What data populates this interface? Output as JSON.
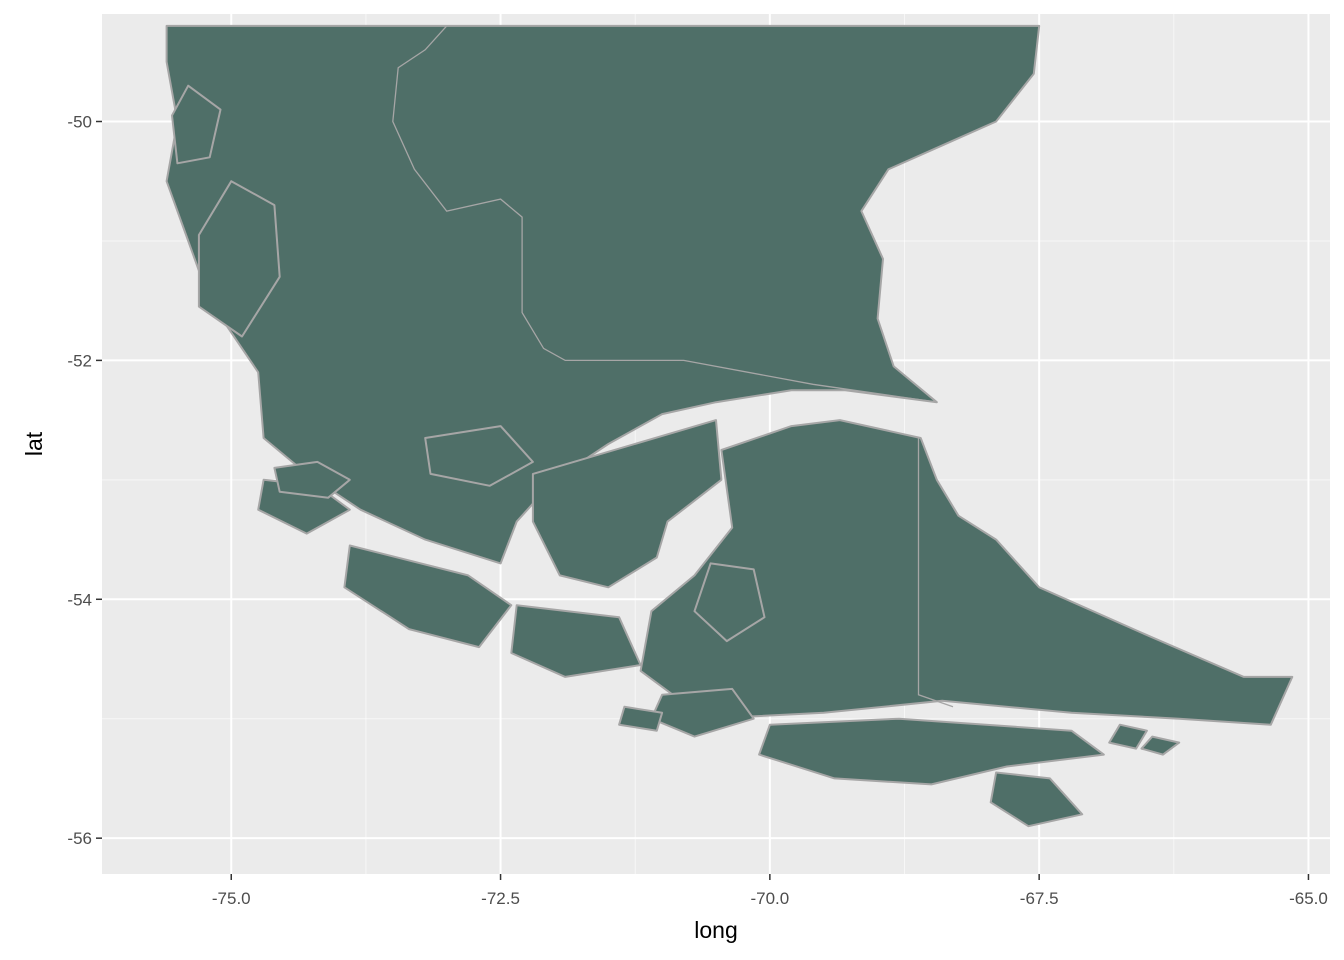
{
  "chart_data": {
    "type": "map",
    "xlabel": "long",
    "ylabel": "lat",
    "xlim": [
      -76.2,
      -64.8
    ],
    "ylim": [
      -56.3,
      -49.1
    ],
    "x_ticks": [
      -75.0,
      -72.5,
      -70.0,
      -67.5,
      -65.0
    ],
    "x_tick_labels": [
      "-75.0",
      "-72.5",
      "-70.0",
      "-67.5",
      "-65.0"
    ],
    "y_ticks": [
      -50,
      -52,
      -54,
      -56
    ],
    "y_tick_labels": [
      "-50",
      "-52",
      "-54",
      "-56"
    ],
    "grid": true,
    "panel_background": "#ebebeb",
    "grid_color": "#ffffff",
    "land_fill": "#4f6f68",
    "land_stroke": "#a6a6a6",
    "water_color": "#ebebeb",
    "regions": [
      {
        "id": "mainland",
        "coords": [
          [
            -75.6,
            -49.2
          ],
          [
            -67.5,
            -49.2
          ],
          [
            -67.55,
            -49.6
          ],
          [
            -67.9,
            -50.0
          ],
          [
            -68.4,
            -50.2
          ],
          [
            -68.9,
            -50.4
          ],
          [
            -69.15,
            -50.75
          ],
          [
            -68.95,
            -51.15
          ],
          [
            -69.0,
            -51.65
          ],
          [
            -68.85,
            -52.05
          ],
          [
            -68.45,
            -52.35
          ],
          [
            -69.3,
            -52.25
          ],
          [
            -69.8,
            -52.25
          ],
          [
            -70.5,
            -52.35
          ],
          [
            -71.0,
            -52.45
          ],
          [
            -71.5,
            -52.7
          ],
          [
            -72.0,
            -53.0
          ],
          [
            -72.35,
            -53.35
          ],
          [
            -72.5,
            -53.7
          ],
          [
            -73.2,
            -53.5
          ],
          [
            -73.8,
            -53.25
          ],
          [
            -74.3,
            -52.95
          ],
          [
            -74.7,
            -52.65
          ],
          [
            -74.75,
            -52.1
          ],
          [
            -75.2,
            -51.5
          ],
          [
            -75.4,
            -51.0
          ],
          [
            -75.6,
            -50.5
          ],
          [
            -75.5,
            -50.0
          ],
          [
            -75.6,
            -49.5
          ]
        ]
      },
      {
        "id": "brunswick-peninsula",
        "coords": [
          [
            -72.2,
            -52.95
          ],
          [
            -70.5,
            -52.5
          ],
          [
            -70.45,
            -53.0
          ],
          [
            -70.95,
            -53.35
          ],
          [
            -71.05,
            -53.65
          ],
          [
            -71.5,
            -53.9
          ],
          [
            -71.95,
            -53.8
          ],
          [
            -72.2,
            -53.35
          ]
        ]
      },
      {
        "id": "tierra-del-fuego",
        "coords": [
          [
            -70.45,
            -52.75
          ],
          [
            -69.8,
            -52.55
          ],
          [
            -69.35,
            -52.5
          ],
          [
            -68.6,
            -52.65
          ],
          [
            -68.45,
            -53.0
          ],
          [
            -68.25,
            -53.3
          ],
          [
            -67.9,
            -53.5
          ],
          [
            -67.5,
            -53.9
          ],
          [
            -66.5,
            -54.3
          ],
          [
            -65.6,
            -54.65
          ],
          [
            -65.15,
            -54.65
          ],
          [
            -65.35,
            -55.05
          ],
          [
            -66.2,
            -55.0
          ],
          [
            -67.2,
            -54.95
          ],
          [
            -68.4,
            -54.85
          ],
          [
            -69.5,
            -54.95
          ],
          [
            -70.6,
            -55.0
          ],
          [
            -71.2,
            -54.6
          ],
          [
            -71.1,
            -54.1
          ],
          [
            -70.7,
            -53.8
          ],
          [
            -70.35,
            -53.4
          ]
        ]
      },
      {
        "id": "navarino-hoste",
        "coords": [
          [
            -70.0,
            -55.05
          ],
          [
            -68.8,
            -55.0
          ],
          [
            -67.2,
            -55.1
          ],
          [
            -66.9,
            -55.3
          ],
          [
            -67.8,
            -55.4
          ],
          [
            -68.5,
            -55.55
          ],
          [
            -69.4,
            -55.5
          ],
          [
            -70.1,
            -55.3
          ]
        ]
      },
      {
        "id": "isla-santa-ines",
        "coords": [
          [
            -73.9,
            -53.55
          ],
          [
            -72.8,
            -53.8
          ],
          [
            -72.4,
            -54.05
          ],
          [
            -72.7,
            -54.4
          ],
          [
            -73.35,
            -54.25
          ],
          [
            -73.95,
            -53.9
          ]
        ]
      },
      {
        "id": "clarence-island",
        "coords": [
          [
            -72.35,
            -54.05
          ],
          [
            -71.4,
            -54.15
          ],
          [
            -71.2,
            -54.55
          ],
          [
            -71.9,
            -54.65
          ],
          [
            -72.4,
            -54.45
          ]
        ]
      },
      {
        "id": "wellington-island",
        "coords": [
          [
            -75.0,
            -50.5
          ],
          [
            -74.6,
            -50.7
          ],
          [
            -74.55,
            -51.3
          ],
          [
            -74.9,
            -51.8
          ],
          [
            -75.3,
            -51.55
          ],
          [
            -75.3,
            -50.95
          ]
        ]
      },
      {
        "id": "madre-de-dios",
        "coords": [
          [
            -75.4,
            -49.7
          ],
          [
            -75.1,
            -49.9
          ],
          [
            -75.2,
            -50.3
          ],
          [
            -75.5,
            -50.35
          ],
          [
            -75.55,
            -49.95
          ]
        ]
      },
      {
        "id": "rennell-island",
        "coords": [
          [
            -74.7,
            -53.0
          ],
          [
            -74.2,
            -53.05
          ],
          [
            -73.9,
            -53.25
          ],
          [
            -74.3,
            -53.45
          ],
          [
            -74.75,
            -53.25
          ]
        ]
      },
      {
        "id": "riesco-island",
        "coords": [
          [
            -73.2,
            -52.65
          ],
          [
            -72.5,
            -52.55
          ],
          [
            -72.2,
            -52.85
          ],
          [
            -72.6,
            -53.05
          ],
          [
            -73.15,
            -52.95
          ]
        ]
      },
      {
        "id": "isla-dawson",
        "coords": [
          [
            -70.55,
            -53.7
          ],
          [
            -70.15,
            -53.75
          ],
          [
            -70.05,
            -54.15
          ],
          [
            -70.4,
            -54.35
          ],
          [
            -70.7,
            -54.1
          ]
        ]
      },
      {
        "id": "isla-londonderry",
        "coords": [
          [
            -71.0,
            -54.8
          ],
          [
            -70.35,
            -54.75
          ],
          [
            -70.15,
            -55.0
          ],
          [
            -70.7,
            -55.15
          ],
          [
            -71.1,
            -55.0
          ]
        ]
      },
      {
        "id": "isla-desolacion",
        "coords": [
          [
            -74.6,
            -52.9
          ],
          [
            -74.2,
            -52.85
          ],
          [
            -73.9,
            -53.0
          ],
          [
            -74.1,
            -53.15
          ],
          [
            -74.55,
            -53.1
          ]
        ]
      },
      {
        "id": "isla-wollaston",
        "coords": [
          [
            -67.9,
            -55.45
          ],
          [
            -67.4,
            -55.5
          ],
          [
            -67.1,
            -55.8
          ],
          [
            -67.6,
            -55.9
          ],
          [
            -67.95,
            -55.7
          ]
        ]
      },
      {
        "id": "isla-picton",
        "coords": [
          [
            -66.75,
            -55.05
          ],
          [
            -66.5,
            -55.1
          ],
          [
            -66.6,
            -55.25
          ],
          [
            -66.85,
            -55.2
          ]
        ]
      },
      {
        "id": "isla-nueva",
        "coords": [
          [
            -66.45,
            -55.15
          ],
          [
            -66.2,
            -55.2
          ],
          [
            -66.35,
            -55.3
          ],
          [
            -66.55,
            -55.25
          ]
        ]
      },
      {
        "id": "isla-stewart",
        "coords": [
          [
            -71.35,
            -54.9
          ],
          [
            -71.0,
            -54.95
          ],
          [
            -71.05,
            -55.1
          ],
          [
            -71.4,
            -55.05
          ]
        ]
      }
    ],
    "boundaries": [
      {
        "id": "argentina-chile-north",
        "coords": [
          [
            -73.0,
            -49.2
          ],
          [
            -73.2,
            -49.4
          ],
          [
            -73.45,
            -49.55
          ],
          [
            -73.5,
            -50.0
          ],
          [
            -73.3,
            -50.4
          ],
          [
            -73.0,
            -50.75
          ],
          [
            -72.5,
            -50.65
          ],
          [
            -72.3,
            -50.8
          ],
          [
            -72.3,
            -51.2
          ],
          [
            -72.3,
            -51.6
          ],
          [
            -72.1,
            -51.9
          ],
          [
            -71.9,
            -52.0
          ],
          [
            -70.8,
            -52.0
          ],
          [
            -69.6,
            -52.2
          ],
          [
            -68.45,
            -52.35
          ]
        ]
      },
      {
        "id": "argentina-chile-tierra-del-fuego",
        "coords": [
          [
            -68.62,
            -52.65
          ],
          [
            -68.62,
            -53.5
          ],
          [
            -68.62,
            -54.2
          ],
          [
            -68.62,
            -54.8
          ],
          [
            -68.3,
            -54.9
          ]
        ]
      }
    ]
  }
}
